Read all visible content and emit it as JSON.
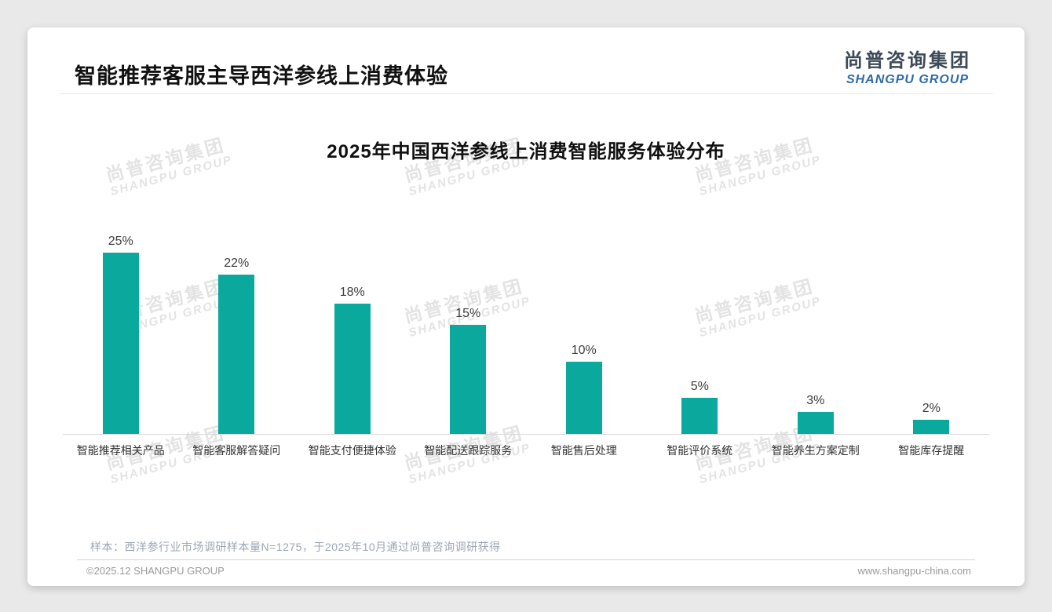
{
  "page": {
    "header_title": "智能推荐客服主导西洋参线上消费体验",
    "logo": {
      "cn": "尚普咨询集团",
      "en": "SHANGPU GROUP"
    },
    "watermark": {
      "cn": "尚普咨询集团",
      "en": "SHANGPU GROUP"
    },
    "note": "样本：西洋参行业市场调研样本量N=1275，于2025年10月通过尚普咨询调研获得",
    "footer": {
      "left": "©2025.12 SHANGPU GROUP",
      "right": "www.shangpu-china.com"
    }
  },
  "chart_data": {
    "type": "bar",
    "title": "2025年中国西洋参线上消费智能服务体验分布",
    "categories": [
      "智能推荐相关产品",
      "智能客服解答疑问",
      "智能支付便捷体验",
      "智能配送跟踪服务",
      "智能售后处理",
      "智能评价系统",
      "智能养生方案定制",
      "智能库存提醒"
    ],
    "values": [
      25,
      22,
      18,
      15,
      10,
      5,
      3,
      2
    ],
    "unit": "%",
    "bar_color": "#0aa89d",
    "xlabel": "",
    "ylabel": "",
    "ylim": [
      0,
      27
    ],
    "grid": false,
    "legend": "none",
    "value_labels_shown": true
  }
}
